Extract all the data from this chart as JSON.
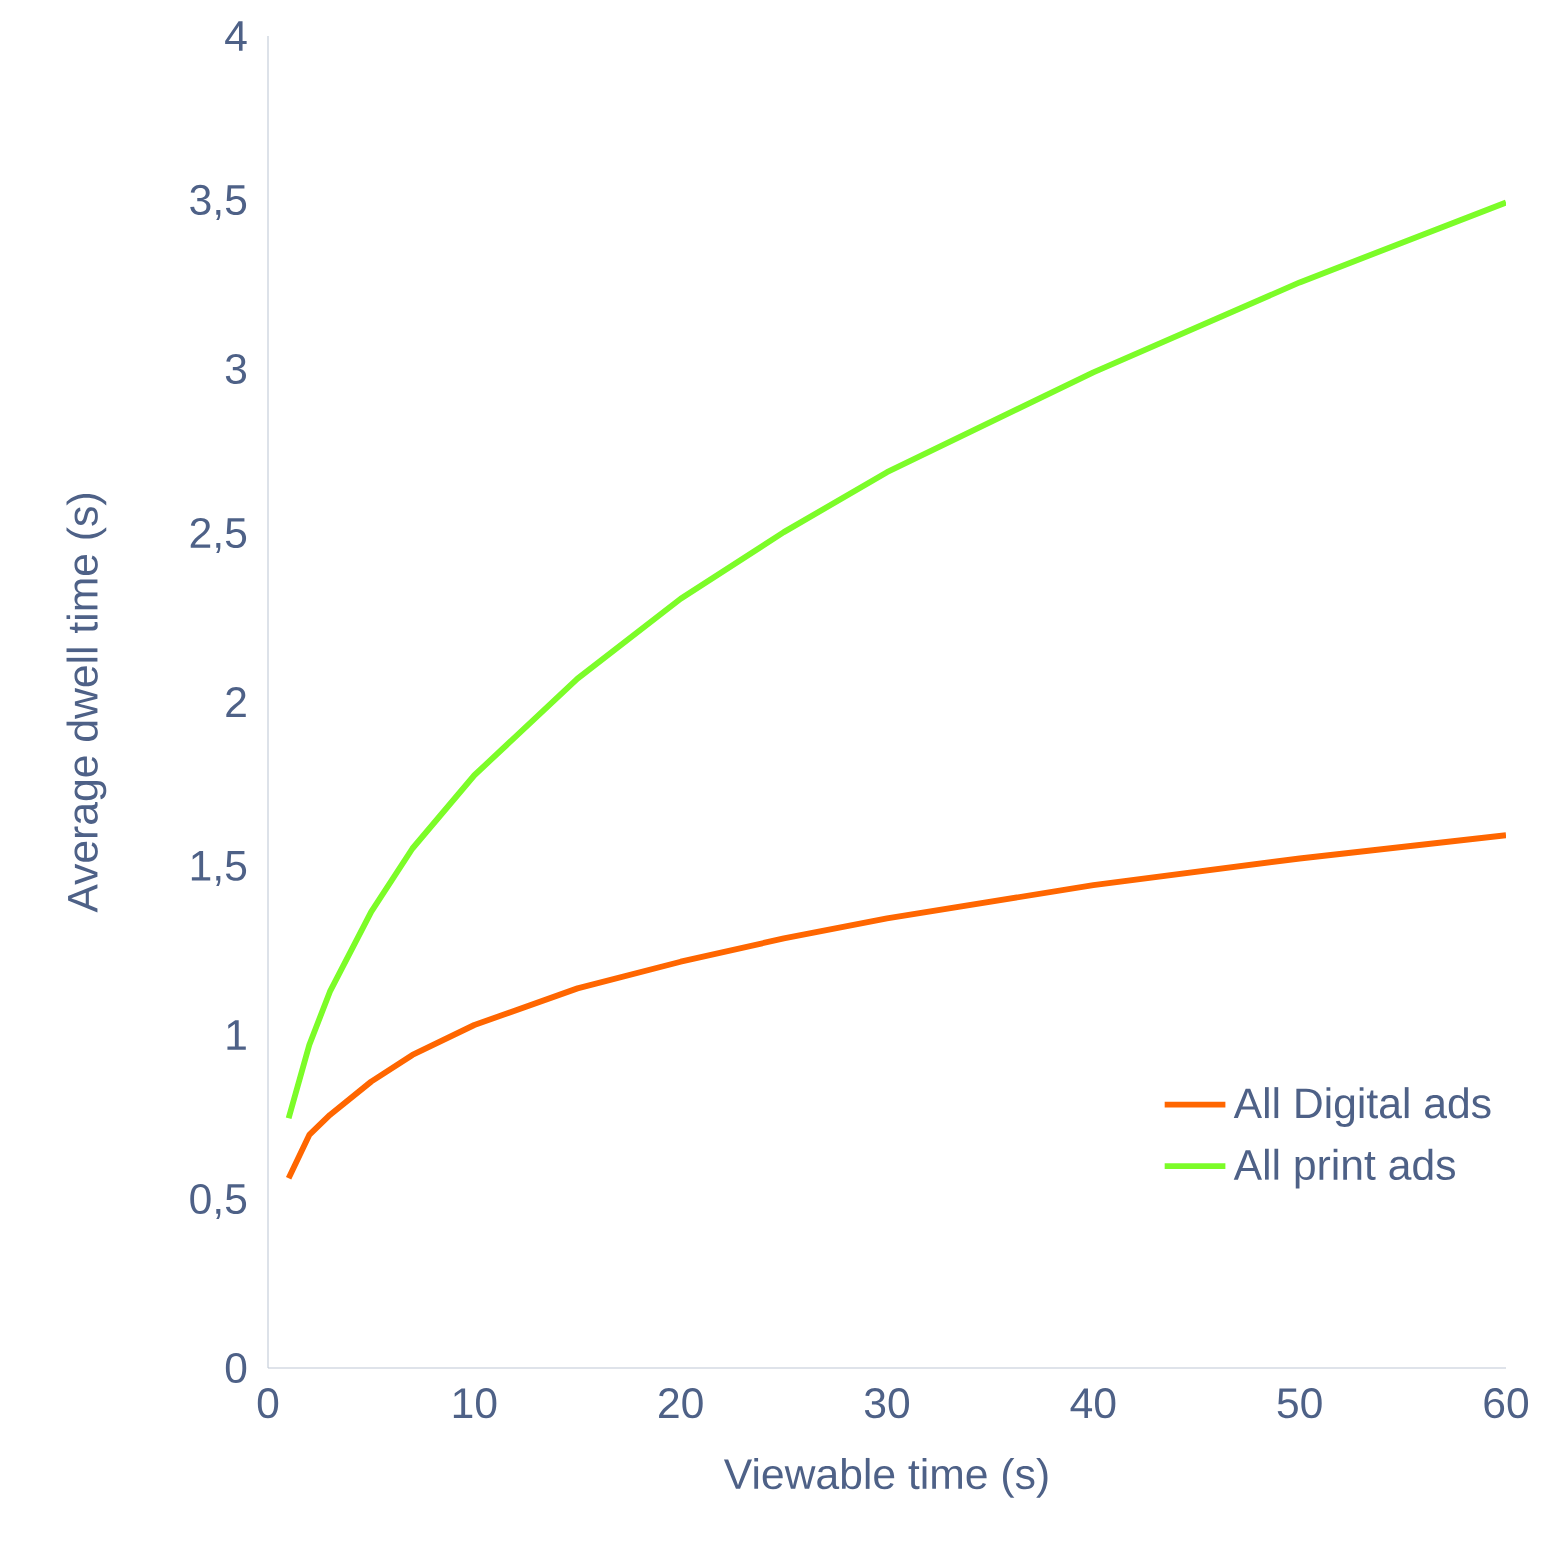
{
  "chart_data": {
    "type": "line",
    "xlabel": "Viewable time (s)",
    "ylabel": "Average dwell time (s)",
    "x": [
      1,
      2,
      3,
      5,
      7,
      10,
      15,
      20,
      25,
      30,
      40,
      50,
      60
    ],
    "series": [
      {
        "name": "All Digital ads",
        "color": "#ff6600",
        "values": [
          0.57,
          0.7,
          0.76,
          0.86,
          0.94,
          1.03,
          1.14,
          1.22,
          1.29,
          1.35,
          1.45,
          1.53,
          1.6
        ]
      },
      {
        "name": "All print ads",
        "color": "#7cfc28",
        "values": [
          0.75,
          0.97,
          1.13,
          1.37,
          1.56,
          1.78,
          2.07,
          2.31,
          2.51,
          2.69,
          2.99,
          3.26,
          3.5
        ]
      }
    ],
    "xlim": [
      0,
      60
    ],
    "xticks": [
      0,
      10,
      20,
      30,
      40,
      50,
      60
    ],
    "ylim": [
      0,
      4
    ],
    "yticks": [
      0,
      {
        "value": 0.5,
        "label": "0,5"
      },
      1,
      {
        "value": 1.5,
        "label": "1,5"
      },
      2,
      {
        "value": 2.5,
        "label": "2,5"
      },
      3,
      {
        "value": 3.5,
        "label": "3,5"
      },
      4
    ],
    "legend": "bottom right",
    "marker": "none",
    "line_style": "solid",
    "grid": false
  }
}
